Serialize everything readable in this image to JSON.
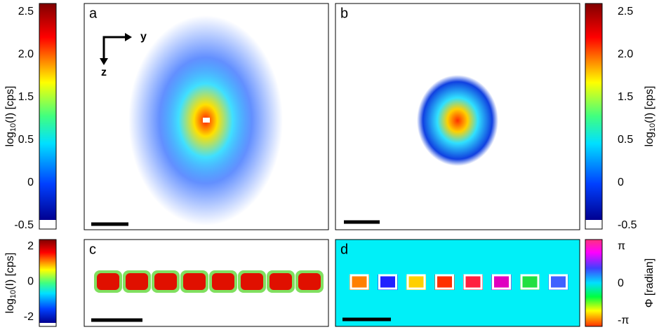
{
  "panels": [
    {
      "label": "a"
    },
    {
      "label": "b"
    },
    {
      "label": "c"
    },
    {
      "label": "d"
    }
  ],
  "axes_indicator": {
    "horizontal": "y",
    "vertical": "z"
  },
  "colorbars": [
    {
      "label": {
        "base": "log",
        "sub": "10",
        "rest": "(I) [cps]"
      },
      "ticks": [
        "2.5",
        "2.0",
        "1.5",
        "0.5",
        "0",
        "-0.5"
      ]
    },
    {
      "label": {
        "base": "log",
        "sub": "10",
        "rest": "(I) [cps]"
      },
      "ticks": [
        "2.5",
        "2.0",
        "1.5",
        "0.5",
        "0",
        "-0.5"
      ]
    },
    {
      "label": {
        "base": "log",
        "sub": "10",
        "rest": "(I) [cps]"
      },
      "ticks": [
        "2",
        "0",
        "-2"
      ]
    },
    {
      "label": {
        "base": "Φ [radian]"
      },
      "ticks": [
        "π",
        "0",
        "-π"
      ]
    }
  ]
}
